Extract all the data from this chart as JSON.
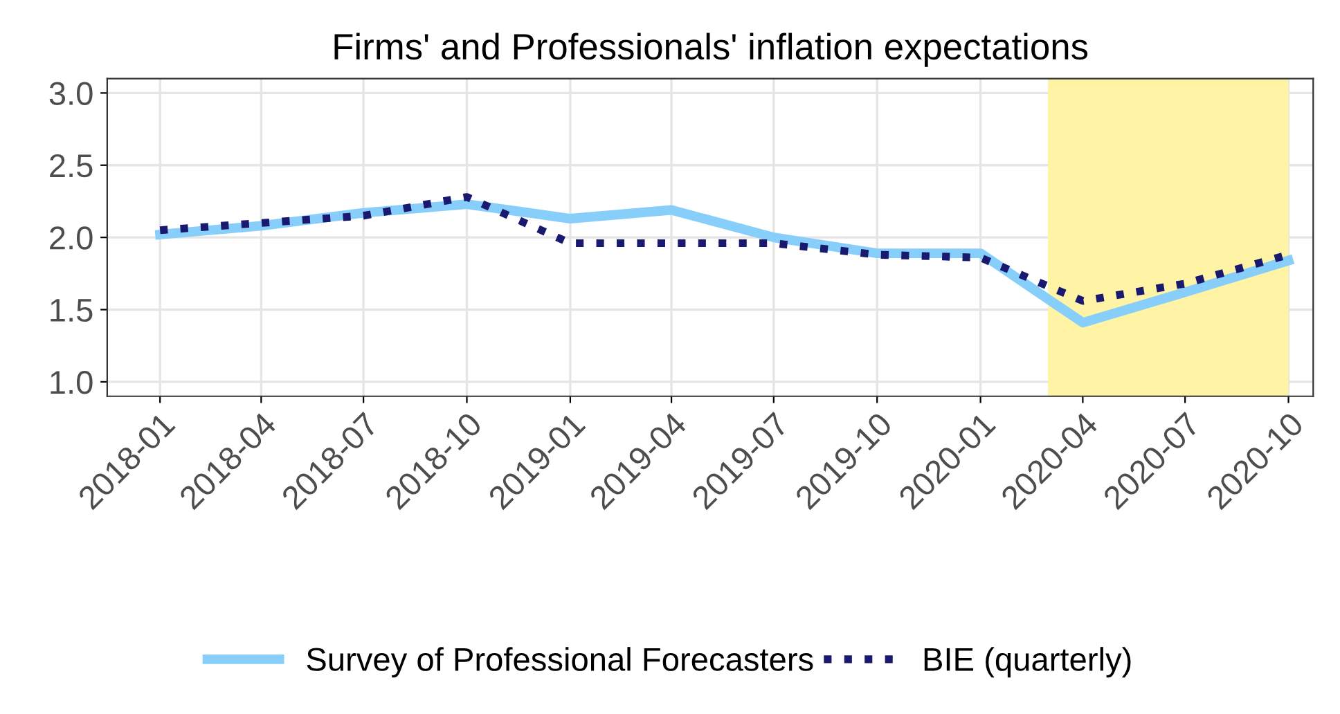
{
  "chart_data": {
    "type": "line",
    "title": "Firms' and Professionals' inflation expectations",
    "x": [
      "2018-01",
      "2018-04",
      "2018-07",
      "2018-10",
      "2019-01",
      "2019-04",
      "2019-07",
      "2019-10",
      "2020-01",
      "2020-04",
      "2020-07",
      "2020-10"
    ],
    "series": [
      {
        "name": "Survey of Professional Forecasters",
        "color": "#87cefa",
        "line_style": "solid",
        "values": [
          2.02,
          2.08,
          2.17,
          2.23,
          2.13,
          2.19,
          2.0,
          1.89,
          1.89,
          1.41,
          1.62,
          1.84
        ]
      },
      {
        "name": "BIE (quarterly)",
        "color": "#191970",
        "line_style": "dotted",
        "values": [
          2.05,
          2.1,
          2.15,
          2.28,
          1.96,
          1.96,
          1.96,
          1.88,
          1.86,
          1.56,
          1.68,
          1.88
        ]
      }
    ],
    "xlim": [
      "2017-11-15",
      "2020-10-23"
    ],
    "xticks": [
      "2018-01",
      "2018-04",
      "2018-07",
      "2018-10",
      "2019-01",
      "2019-04",
      "2019-07",
      "2019-10",
      "2020-01",
      "2020-04",
      "2020-07",
      "2020-10"
    ],
    "ylim": [
      0.9,
      3.1
    ],
    "yticks": [
      {
        "value": 1,
        "label": "1.0"
      },
      {
        "value": 1.5,
        "label": "1.5"
      },
      {
        "value": 2,
        "label": "2.0"
      },
      {
        "value": 2.5,
        "label": "2.5"
      },
      {
        "value": 3,
        "label": "3.0"
      }
    ],
    "bands": [
      {
        "axis": "x",
        "from": "2020-03",
        "to": "2020-10",
        "color": "#fff3a6"
      }
    ],
    "grid": true,
    "legend": "bottom",
    "marker": "none"
  }
}
